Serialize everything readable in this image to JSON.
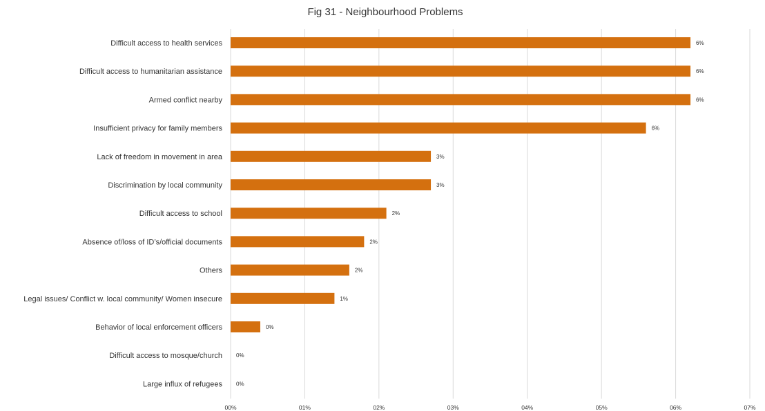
{
  "chart_data": {
    "type": "bar",
    "orientation": "horizontal",
    "title": "Fig 31 - Neighbourhood Problems",
    "xlabel": "",
    "ylabel": "",
    "categories": [
      "Difficult access to health services",
      "Difficult access to humanitarian assistance",
      "Armed conflict nearby",
      "Insufficient privacy for family members",
      "Lack of freedom in movement in area",
      "Discrimination by local community",
      "Difficult access to school",
      "Absence of/loss of ID’s/official documents",
      "Others",
      "Legal issues/ Conflict w. local community/ Women insecure",
      "Behavior of local enforcement officers",
      "Difficult access to mosque/church",
      "Large influx of refugees"
    ],
    "values": [
      0.062,
      0.062,
      0.062,
      0.056,
      0.027,
      0.027,
      0.021,
      0.018,
      0.016,
      0.014,
      0.004,
      0.0,
      0.0
    ],
    "data_labels": [
      "6%",
      "6%",
      "6%",
      "6%",
      "3%",
      "3%",
      "2%",
      "2%",
      "2%",
      "1%",
      "0%",
      "0%",
      "0%"
    ],
    "xlim": [
      0,
      0.07
    ],
    "x_ticks": [
      0,
      0.01,
      0.02,
      0.03,
      0.04,
      0.05,
      0.06,
      0.07
    ],
    "x_tick_labels": [
      "00%",
      "01%",
      "02%",
      "03%",
      "04%",
      "05%",
      "06%",
      "07%"
    ],
    "grid": true,
    "legend": "none",
    "bar_color": "#d4700f"
  }
}
